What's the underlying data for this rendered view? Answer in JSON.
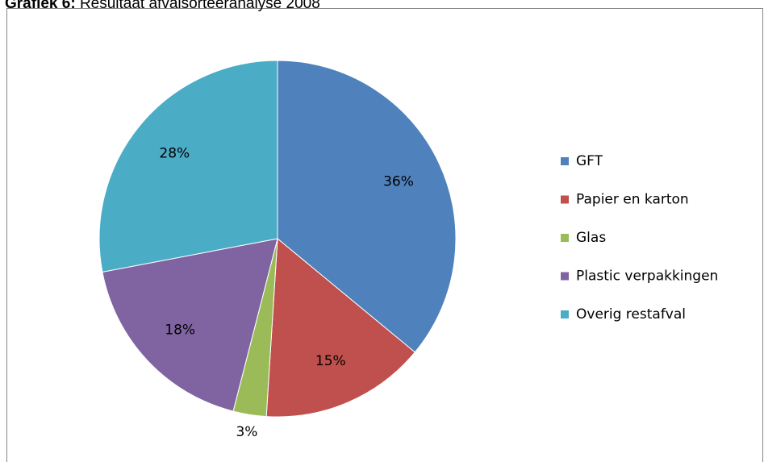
{
  "chart_data": {
    "type": "pie",
    "title_prefix": "Grafiek 6:",
    "title": "Resultaat afvalsorteeranalyse 2008",
    "categories": [
      "GFT",
      "Papier en karton",
      "Glas",
      "Plastic verpakkingen",
      "Overig restafval"
    ],
    "values": [
      36,
      15,
      3,
      18,
      28
    ],
    "value_labels": [
      "36%",
      "15%",
      "3%",
      "18%",
      "28%"
    ],
    "colors": [
      "#4f81bd",
      "#c0504d",
      "#9bbb59",
      "#8064a2",
      "#4bacc6"
    ],
    "legend": "right"
  }
}
